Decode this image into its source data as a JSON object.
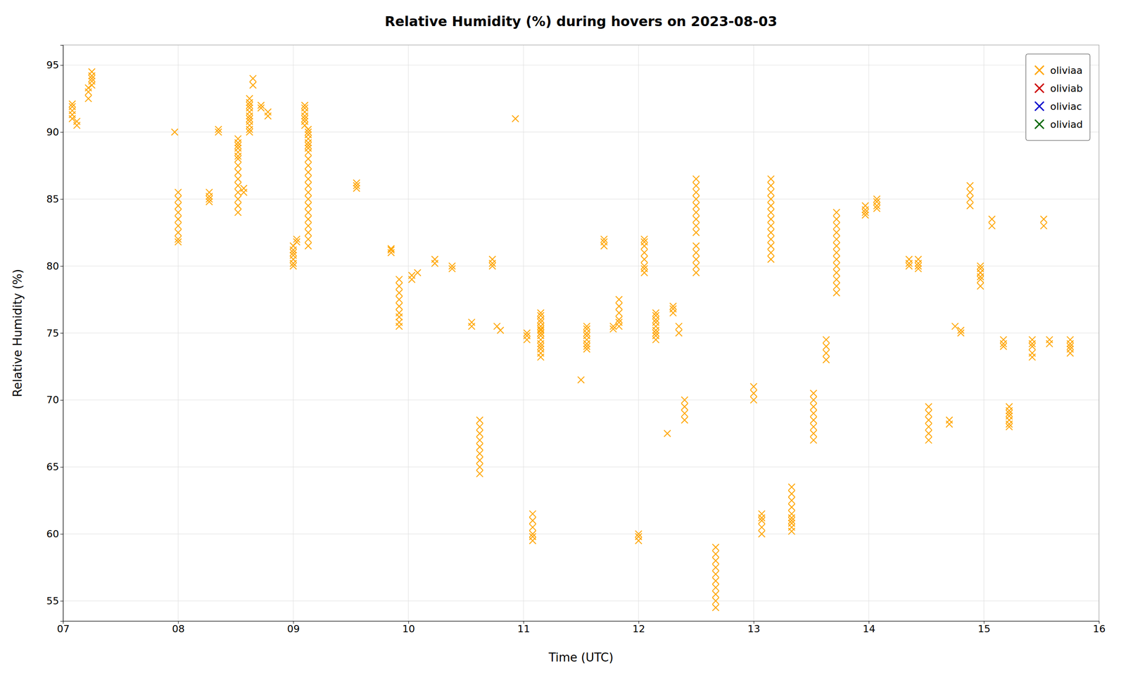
{
  "chart_data": {
    "type": "scatter",
    "title": "Relative Humidity (%) during hovers on 2023-08-03",
    "x_label": "Time (UTC)",
    "y_label": "Relative Humidity (%)",
    "xlim": [
      7.0,
      16.0
    ],
    "ylim": [
      53.5,
      96.5
    ],
    "xticks": [
      {
        "value": 7,
        "label": "07"
      },
      {
        "value": 8,
        "label": "08"
      },
      {
        "value": 9,
        "label": "09"
      },
      {
        "value": 10,
        "label": "10"
      },
      {
        "value": 11,
        "label": "11"
      },
      {
        "value": 12,
        "label": "12"
      },
      {
        "value": 13,
        "label": "13"
      },
      {
        "value": 14,
        "label": "14"
      },
      {
        "value": 15,
        "label": "15"
      },
      {
        "value": 16,
        "label": "16"
      }
    ],
    "yticks": [
      55,
      60,
      65,
      70,
      75,
      80,
      85,
      90,
      95
    ],
    "grid": true,
    "legend": "upper right",
    "series": [
      {
        "name": "oliviaa",
        "color": "#FFA500",
        "marker": "x",
        "x": [
          7.08,
          7.08,
          7.08,
          7.08,
          7.08,
          7.12,
          7.12,
          7.22,
          7.22,
          7.22,
          7.25,
          7.25,
          7.25,
          7.25,
          7.25,
          7.97,
          8.0,
          8.0,
          8.0,
          8.0,
          8.0,
          8.0,
          8.0,
          8.0,
          8.0,
          8.27,
          8.27,
          8.27,
          8.27,
          8.35,
          8.35,
          8.52,
          8.52,
          8.52,
          8.52,
          8.52,
          8.52,
          8.52,
          8.52,
          8.52,
          8.52,
          8.52,
          8.52,
          8.52,
          8.52,
          8.52,
          8.57,
          8.57,
          8.62,
          8.62,
          8.62,
          8.62,
          8.62,
          8.62,
          8.62,
          8.62,
          8.62,
          8.62,
          8.62,
          8.65,
          8.65,
          8.72,
          8.72,
          8.78,
          8.78,
          9.0,
          9.0,
          9.0,
          9.0,
          9.0,
          9.0,
          9.0,
          9.03,
          9.03,
          9.1,
          9.1,
          9.1,
          9.1,
          9.1,
          9.1,
          9.1,
          9.13,
          9.13,
          9.13,
          9.13,
          9.13,
          9.13,
          9.13,
          9.13,
          9.13,
          9.13,
          9.13,
          9.13,
          9.13,
          9.13,
          9.13,
          9.13,
          9.13,
          9.13,
          9.13,
          9.13,
          9.13,
          9.13,
          9.55,
          9.55,
          9.55,
          9.85,
          9.85,
          9.85,
          9.92,
          9.92,
          9.92,
          9.92,
          9.92,
          9.92,
          9.92,
          9.92,
          9.92,
          10.03,
          10.03,
          10.08,
          10.23,
          10.23,
          10.38,
          10.38,
          10.55,
          10.55,
          10.62,
          10.62,
          10.62,
          10.62,
          10.62,
          10.62,
          10.62,
          10.62,
          10.62,
          10.73,
          10.73,
          10.73,
          10.77,
          10.8,
          10.93,
          11.03,
          11.03,
          11.03,
          11.08,
          11.08,
          11.08,
          11.08,
          11.08,
          11.08,
          11.15,
          11.15,
          11.15,
          11.15,
          11.15,
          11.15,
          11.15,
          11.15,
          11.15,
          11.15,
          11.15,
          11.15,
          11.15,
          11.15,
          11.15,
          11.15,
          11.15,
          11.5,
          11.55,
          11.55,
          11.55,
          11.55,
          11.55,
          11.55,
          11.55,
          11.55,
          11.7,
          11.7,
          11.7,
          11.78,
          11.78,
          11.83,
          11.83,
          11.83,
          11.83,
          11.83,
          11.83,
          12.0,
          12.0,
          12.0,
          12.05,
          12.05,
          12.05,
          12.05,
          12.05,
          12.05,
          12.05,
          12.05,
          12.15,
          12.15,
          12.15,
          12.15,
          12.15,
          12.15,
          12.15,
          12.15,
          12.15,
          12.25,
          12.3,
          12.3,
          12.3,
          12.35,
          12.35,
          12.4,
          12.4,
          12.4,
          12.4,
          12.5,
          12.5,
          12.5,
          12.5,
          12.5,
          12.5,
          12.5,
          12.5,
          12.5,
          12.5,
          12.5,
          12.5,
          12.5,
          12.5,
          12.67,
          12.67,
          12.67,
          12.67,
          12.67,
          12.67,
          12.67,
          12.67,
          12.67,
          12.67,
          13.0,
          13.0,
          13.0,
          13.07,
          13.07,
          13.07,
          13.07,
          13.07,
          13.15,
          13.15,
          13.15,
          13.15,
          13.15,
          13.15,
          13.15,
          13.15,
          13.15,
          13.15,
          13.15,
          13.15,
          13.15,
          13.33,
          13.33,
          13.33,
          13.33,
          13.33,
          13.33,
          13.33,
          13.33,
          13.33,
          13.33,
          13.52,
          13.52,
          13.52,
          13.52,
          13.52,
          13.52,
          13.52,
          13.52,
          13.63,
          13.63,
          13.63,
          13.63,
          13.72,
          13.72,
          13.72,
          13.72,
          13.72,
          13.72,
          13.72,
          13.72,
          13.72,
          13.72,
          13.72,
          13.72,
          13.72,
          13.97,
          13.97,
          13.97,
          13.97,
          14.07,
          14.07,
          14.07,
          14.07,
          14.35,
          14.35,
          14.35,
          14.43,
          14.43,
          14.43,
          14.43,
          14.52,
          14.52,
          14.52,
          14.52,
          14.52,
          14.52,
          14.7,
          14.7,
          14.75,
          14.8,
          14.8,
          14.88,
          14.88,
          14.88,
          14.88,
          14.97,
          14.97,
          14.97,
          14.97,
          14.97,
          14.97,
          14.97,
          15.07,
          15.07,
          15.17,
          15.17,
          15.17,
          15.22,
          15.22,
          15.22,
          15.22,
          15.22,
          15.22,
          15.22,
          15.42,
          15.42,
          15.42,
          15.42,
          15.42,
          15.52,
          15.52,
          15.57,
          15.57,
          15.75,
          15.75,
          15.75,
          15.75,
          15.75
        ],
        "values": [
          91.0,
          91.3,
          91.6,
          91.9,
          92.1,
          90.5,
          90.8,
          92.5,
          93.0,
          93.3,
          93.5,
          93.8,
          94.0,
          94.2,
          94.5,
          90.0,
          85.5,
          85.0,
          84.5,
          84.0,
          83.5,
          83.0,
          82.5,
          82.0,
          81.8,
          85.5,
          85.2,
          85.0,
          84.8,
          90.2,
          90.0,
          89.5,
          89.2,
          89.0,
          88.8,
          88.5,
          88.2,
          88.0,
          87.5,
          87.0,
          86.5,
          86.0,
          85.5,
          85.0,
          84.5,
          84.0,
          85.8,
          85.5,
          92.5,
          92.2,
          92.0,
          91.8,
          91.5,
          91.2,
          91.0,
          90.8,
          90.5,
          90.2,
          90.0,
          93.5,
          94.0,
          92.0,
          91.8,
          91.5,
          91.2,
          81.5,
          81.2,
          81.0,
          80.8,
          80.5,
          80.2,
          80.0,
          82.0,
          81.8,
          92.0,
          91.8,
          91.5,
          91.2,
          91.0,
          90.8,
          90.5,
          90.2,
          90.0,
          89.8,
          89.5,
          89.2,
          89.0,
          88.8,
          88.5,
          88.0,
          87.5,
          87.0,
          86.5,
          86.0,
          85.5,
          85.0,
          84.5,
          84.0,
          83.5,
          83.0,
          82.5,
          82.0,
          81.5,
          85.8,
          86.0,
          86.2,
          81.0,
          81.2,
          81.3,
          79.0,
          78.5,
          78.0,
          77.5,
          77.0,
          76.5,
          76.2,
          75.8,
          75.5,
          79.0,
          79.3,
          79.5,
          80.5,
          80.2,
          80.0,
          79.8,
          75.8,
          75.5,
          68.5,
          68.0,
          67.5,
          67.0,
          66.5,
          66.0,
          65.5,
          65.0,
          64.5,
          80.5,
          80.2,
          80.0,
          75.5,
          75.2,
          91.0,
          75.0,
          74.8,
          74.5,
          61.5,
          61.0,
          60.5,
          60.0,
          59.8,
          59.5,
          75.5,
          75.3,
          75.0,
          76.5,
          76.3,
          76.0,
          75.8,
          75.5,
          75.2,
          75.0,
          74.8,
          74.5,
          74.2,
          74.0,
          73.8,
          73.5,
          73.2,
          71.5,
          75.5,
          75.3,
          75.0,
          74.8,
          74.5,
          74.2,
          74.0,
          73.8,
          82.0,
          81.8,
          81.5,
          75.5,
          75.3,
          77.5,
          77.0,
          76.5,
          76.0,
          75.8,
          75.5,
          60.0,
          59.8,
          59.5,
          82.0,
          81.8,
          81.5,
          81.0,
          80.5,
          80.0,
          79.8,
          79.5,
          76.5,
          76.3,
          76.0,
          75.8,
          75.5,
          75.2,
          75.0,
          74.8,
          74.5,
          67.5,
          77.0,
          76.8,
          76.5,
          75.5,
          75.0,
          70.0,
          69.5,
          69.0,
          68.5,
          86.5,
          86.0,
          85.5,
          85.0,
          84.5,
          84.0,
          83.5,
          83.0,
          82.5,
          81.5,
          81.0,
          80.5,
          80.0,
          79.5,
          59.0,
          58.5,
          58.0,
          57.5,
          57.0,
          56.5,
          56.0,
          55.5,
          55.0,
          54.5,
          71.0,
          70.5,
          70.0,
          61.5,
          61.2,
          61.0,
          60.5,
          60.0,
          86.5,
          86.0,
          85.5,
          85.0,
          84.5,
          84.0,
          83.5,
          83.0,
          82.5,
          82.0,
          81.5,
          81.0,
          80.5,
          63.5,
          63.0,
          62.5,
          62.0,
          61.5,
          61.2,
          61.0,
          60.8,
          60.5,
          60.2,
          70.5,
          70.0,
          69.5,
          69.0,
          68.5,
          68.0,
          67.5,
          67.0,
          74.5,
          74.0,
          73.5,
          73.0,
          84.0,
          83.5,
          83.0,
          82.5,
          82.0,
          81.5,
          81.0,
          80.5,
          80.0,
          79.5,
          79.0,
          78.5,
          78.0,
          84.5,
          84.2,
          84.0,
          83.8,
          85.0,
          84.8,
          84.5,
          84.3,
          80.5,
          80.2,
          80.0,
          80.5,
          80.2,
          80.0,
          79.8,
          69.5,
          69.0,
          68.5,
          68.0,
          67.5,
          67.0,
          68.5,
          68.2,
          75.5,
          75.2,
          75.0,
          86.0,
          85.5,
          85.0,
          84.5,
          79.5,
          79.0,
          78.5,
          80.0,
          79.8,
          79.5,
          79.2,
          83.5,
          83.0,
          74.5,
          74.2,
          74.0,
          69.5,
          69.2,
          69.0,
          68.8,
          68.5,
          68.2,
          68.0,
          74.5,
          74.2,
          74.0,
          73.5,
          73.2,
          83.5,
          83.0,
          74.5,
          74.2,
          74.5,
          74.2,
          74.0,
          73.8,
          73.5
        ]
      },
      {
        "name": "oliviab",
        "color": "#cc0000",
        "marker": "x",
        "x": [],
        "values": []
      },
      {
        "name": "oliviac",
        "color": "#0000cc",
        "marker": "x",
        "x": [],
        "values": []
      },
      {
        "name": "oliviad",
        "color": "#006600",
        "marker": "x",
        "x": [],
        "values": []
      }
    ]
  }
}
